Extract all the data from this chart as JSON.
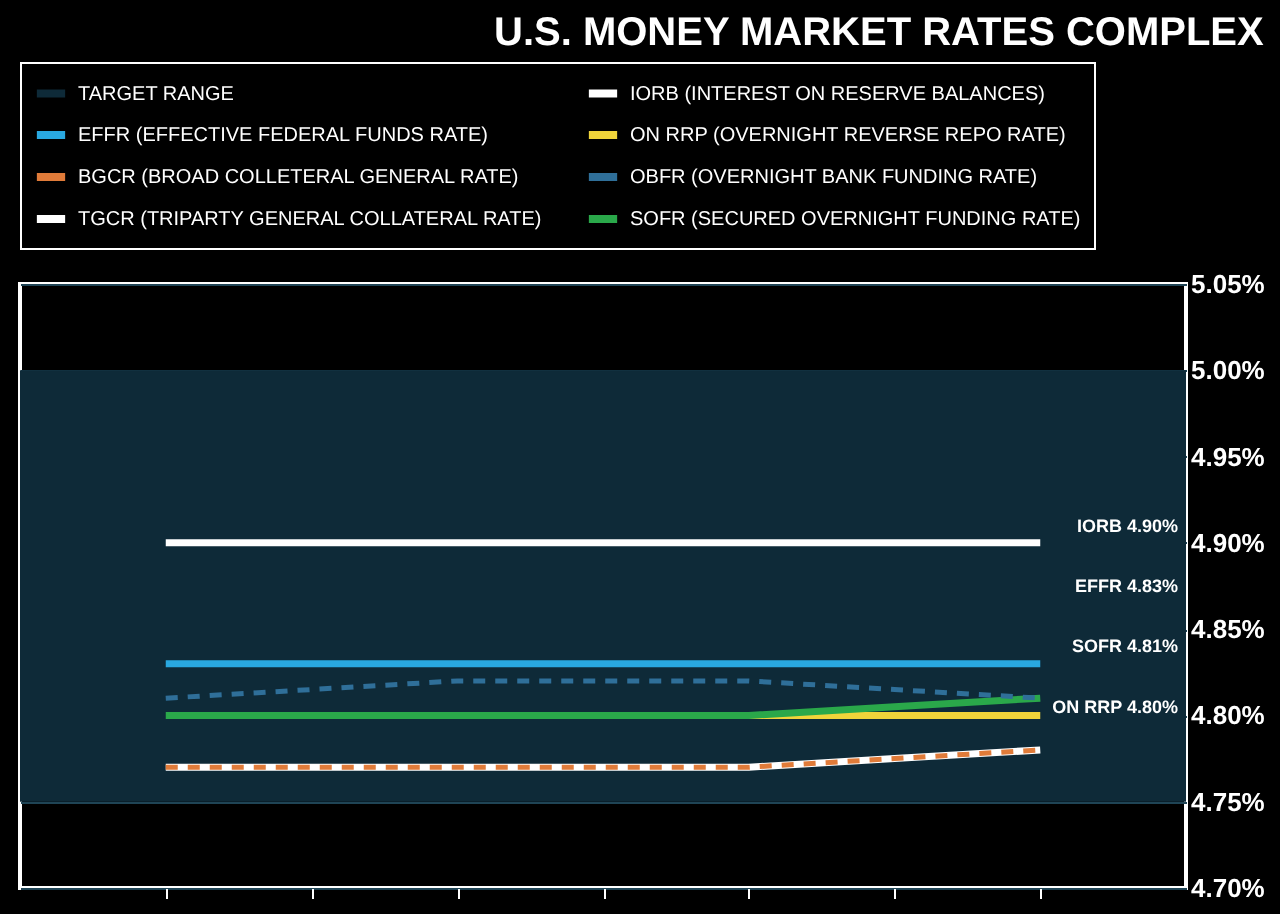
{
  "chart_data": {
    "type": "line",
    "title": "U.S. MONEY MARKET RATES COMPLEX",
    "categories": [
      null,
      null,
      null,
      null,
      null,
      null,
      null
    ],
    "series": [
      {
        "name": "IORB (INTEREST ON RESERVE BALANCES)",
        "color": "#ffffff",
        "values": [
          4.9,
          4.9,
          4.9,
          4.9,
          4.9,
          4.9,
          4.9
        ]
      },
      {
        "name": "EFFR (EFFECTIVE FEDERAL FUNDS RATE)",
        "color": "#29a8e0",
        "values": [
          4.83,
          4.83,
          4.83,
          4.83,
          4.83,
          4.83,
          4.83
        ]
      },
      {
        "name": "ON RRP (OVERNIGHT REVERSE REPO RATE)",
        "color": "#f0d43a",
        "values": [
          null,
          null,
          null,
          null,
          4.8,
          4.8,
          4.8
        ]
      },
      {
        "name": "BGCR (BROAD COLLETERAL GENERAL RATE)",
        "color": "#e07b39",
        "line_style": "dashed",
        "values": [
          4.77,
          4.77,
          4.77,
          4.77,
          4.77,
          4.775,
          4.78
        ]
      },
      {
        "name": "OBFR (OVERNIGHT BANK FUNDING RATE)",
        "color": "#2f6f99",
        "line_style": "dashed",
        "values": [
          4.81,
          4.815,
          4.82,
          4.82,
          4.82,
          4.815,
          4.81
        ]
      },
      {
        "name": "TGCR (TRIPARTY GENERAL COLLATERAL RATE)",
        "color": "#ffffff",
        "values": [
          4.77,
          4.77,
          4.77,
          4.77,
          4.77,
          4.775,
          4.78
        ]
      },
      {
        "name": "SOFR (SECURED OVERNIGHT FUNDING RATE)",
        "color": "#2aa84a",
        "values": [
          4.8,
          4.8,
          4.8,
          4.8,
          4.8,
          4.805,
          4.81
        ]
      }
    ],
    "bands": [
      {
        "axis": "y",
        "from": 4.75,
        "to": 5.0,
        "label": "TARGET RANGE",
        "color": "#0e2a38"
      }
    ],
    "annotations": [
      "IORB 4.90%",
      "EFFR 4.83%",
      "SOFR 4.81%",
      "ON RRP 4.80%"
    ],
    "ylim": [
      4.7,
      5.05
    ],
    "yticks": [
      {
        "value": 4.7,
        "label": "4.70%"
      },
      {
        "value": 4.75,
        "label": "4.75%"
      },
      {
        "value": 4.8,
        "label": "4.80%"
      },
      {
        "value": 4.85,
        "label": "4.85%"
      },
      {
        "value": 4.9,
        "label": "4.90%"
      },
      {
        "value": 4.95,
        "label": "4.95%"
      },
      {
        "value": 5.0,
        "label": "5.00%"
      },
      {
        "value": 5.05,
        "label": "5.05%"
      }
    ],
    "grid": "y",
    "legend": "top",
    "tick_labels": "y"
  }
}
